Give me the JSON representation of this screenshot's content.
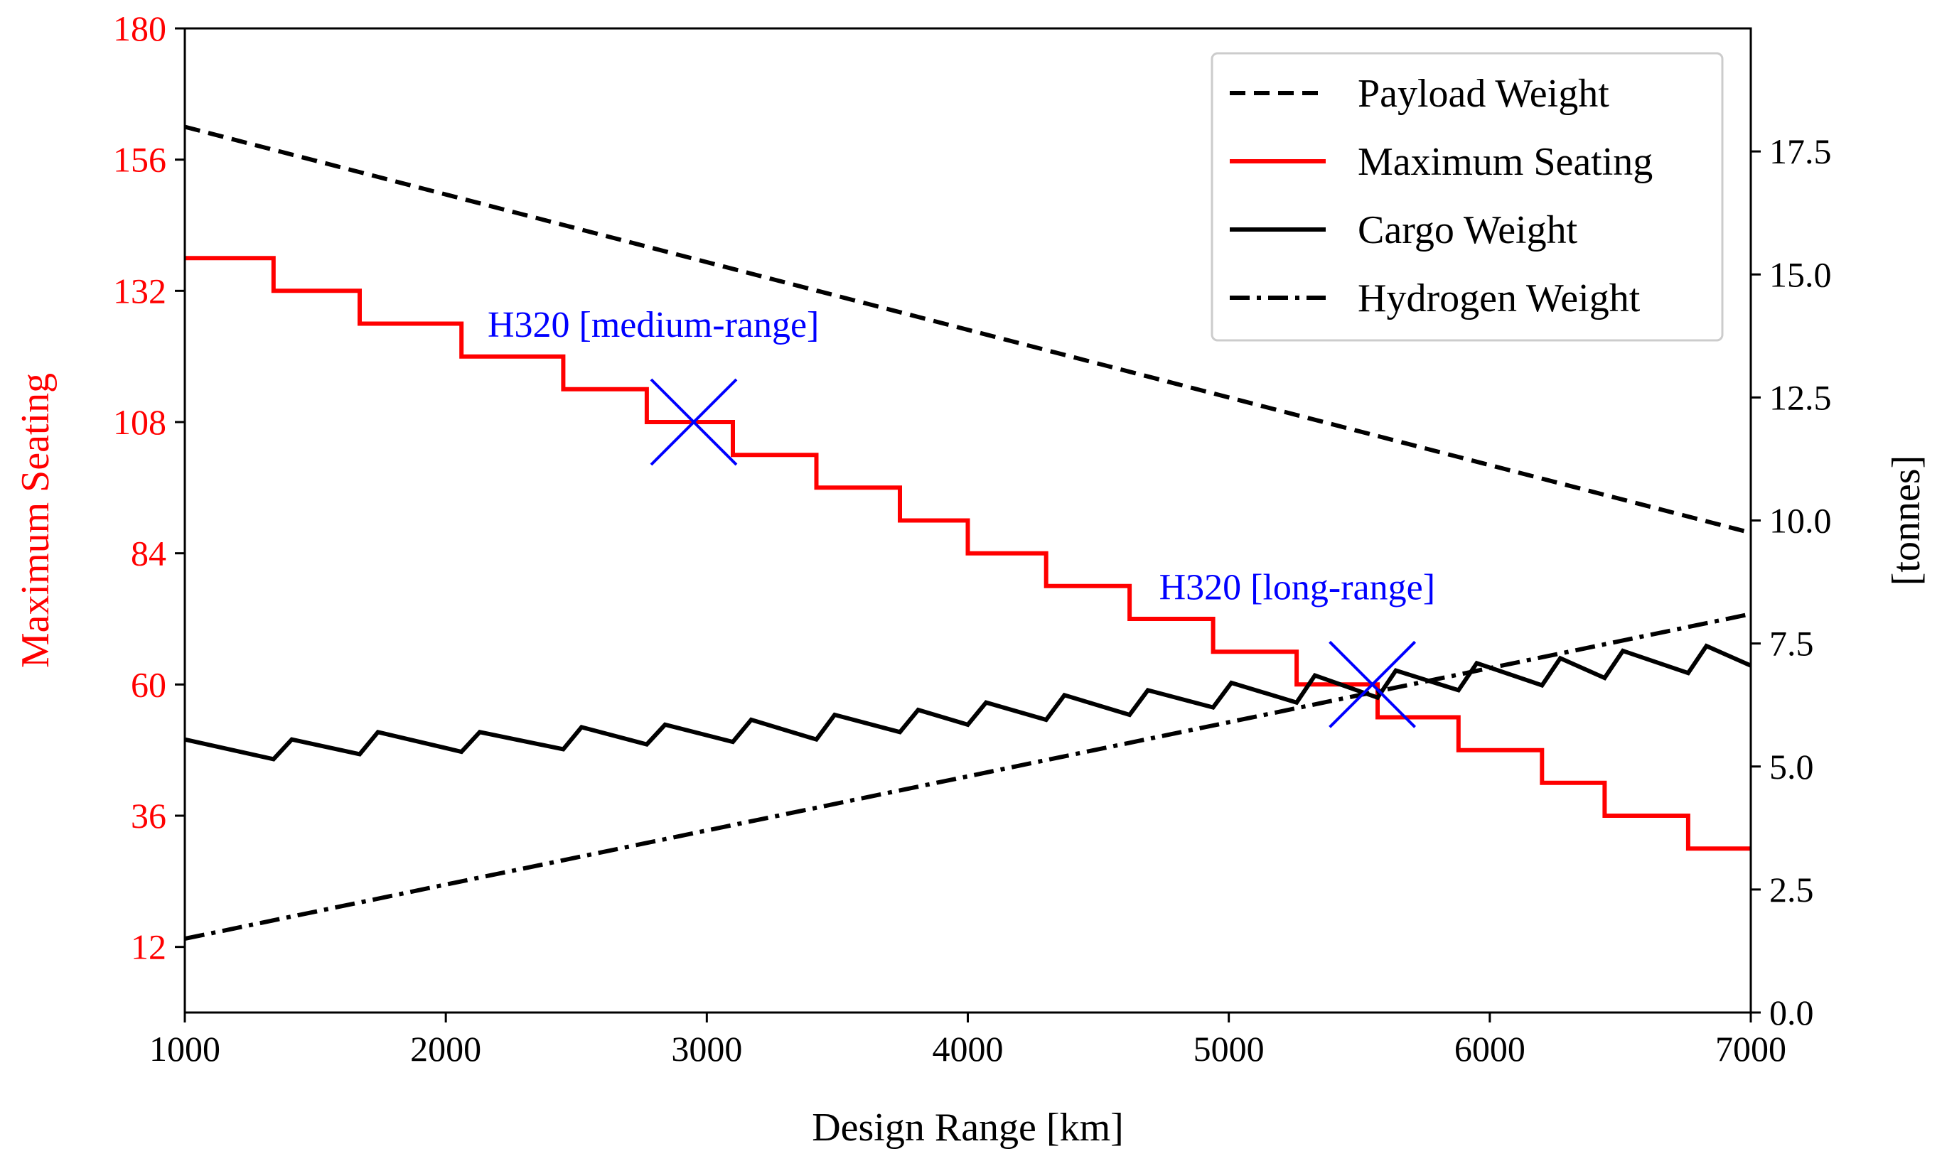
{
  "chart_data": {
    "type": "line",
    "x_axis": {
      "label": "Design Range [km]",
      "range": [
        1000,
        7000
      ],
      "ticks": [
        1000,
        2000,
        3000,
        4000,
        5000,
        6000,
        7000
      ]
    },
    "y_left": {
      "label": "Maximum Seating",
      "color": "#ff0000",
      "range": [
        0,
        180
      ],
      "ticks": [
        12,
        36,
        60,
        84,
        108,
        132,
        156,
        180
      ]
    },
    "y_right": {
      "label": "[tonnes]",
      "range": [
        0,
        20
      ],
      "ticks": [
        0.0,
        2.5,
        5.0,
        7.5,
        10.0,
        12.5,
        15.0,
        17.5
      ],
      "tick_labels": [
        "0.0",
        "2.5",
        "5.0",
        "7.5",
        "10.0",
        "12.5",
        "15.0",
        "17.5"
      ]
    },
    "legend_position": "top-right",
    "series": [
      {
        "name": "Payload Weight",
        "axis": "right",
        "color": "#000000",
        "style": "dashed",
        "x": [
          1000,
          7000
        ],
        "y": [
          18.0,
          9.75
        ]
      },
      {
        "name": "Maximum Seating",
        "axis": "left",
        "color": "#ff0000",
        "style": "step",
        "steps": [
          {
            "x0": 1000,
            "x1": 1340,
            "y": 138
          },
          {
            "x0": 1340,
            "x1": 1670,
            "y": 132
          },
          {
            "x0": 1670,
            "x1": 2060,
            "y": 126
          },
          {
            "x0": 2060,
            "x1": 2450,
            "y": 120
          },
          {
            "x0": 2450,
            "x1": 2770,
            "y": 114
          },
          {
            "x0": 2770,
            "x1": 3100,
            "y": 108
          },
          {
            "x0": 3100,
            "x1": 3420,
            "y": 102
          },
          {
            "x0": 3420,
            "x1": 3740,
            "y": 96
          },
          {
            "x0": 3740,
            "x1": 4000,
            "y": 90
          },
          {
            "x0": 4000,
            "x1": 4300,
            "y": 84
          },
          {
            "x0": 4300,
            "x1": 4620,
            "y": 78
          },
          {
            "x0": 4620,
            "x1": 4940,
            "y": 72
          },
          {
            "x0": 4940,
            "x1": 5260,
            "y": 66
          },
          {
            "x0": 5260,
            "x1": 5570,
            "y": 60
          },
          {
            "x0": 5570,
            "x1": 5880,
            "y": 54
          },
          {
            "x0": 5880,
            "x1": 6200,
            "y": 48
          },
          {
            "x0": 6200,
            "x1": 6440,
            "y": 42
          },
          {
            "x0": 6440,
            "x1": 6760,
            "y": 36
          },
          {
            "x0": 6760,
            "x1": 7000,
            "y": 30
          }
        ]
      },
      {
        "name": "Cargo Weight",
        "axis": "right",
        "color": "#000000",
        "style": "solid",
        "x": [
          1000,
          1340,
          1410,
          1670,
          1740,
          2060,
          2130,
          2450,
          2520,
          2770,
          2840,
          3100,
          3170,
          3420,
          3490,
          3740,
          3810,
          4000,
          4070,
          4300,
          4370,
          4620,
          4690,
          4940,
          5010,
          5260,
          5330,
          5570,
          5640,
          5880,
          5950,
          6200,
          6270,
          6440,
          6510,
          6760,
          6830,
          7000
        ],
        "y": [
          5.55,
          5.15,
          5.55,
          5.25,
          5.7,
          5.3,
          5.7,
          5.35,
          5.8,
          5.45,
          5.85,
          5.5,
          5.95,
          5.55,
          6.05,
          5.7,
          6.15,
          5.85,
          6.3,
          5.95,
          6.45,
          6.05,
          6.55,
          6.2,
          6.7,
          6.3,
          6.85,
          6.4,
          6.95,
          6.55,
          7.1,
          6.65,
          7.2,
          6.8,
          7.35,
          6.9,
          7.45,
          7.05
        ]
      },
      {
        "name": "Hydrogen Weight",
        "axis": "right",
        "color": "#000000",
        "style": "dashdot",
        "x": [
          1000,
          7000
        ],
        "y": [
          1.5,
          8.1
        ]
      }
    ],
    "annotations": [
      {
        "text": "H320 [medium-range]",
        "x": 2950,
        "y": 108,
        "axis": "left",
        "marker": "x",
        "color": "#0000ff"
      },
      {
        "text": "H320 [long-range]",
        "x": 5550,
        "y": 60,
        "axis": "left",
        "marker": "x",
        "color": "#0000ff"
      }
    ]
  }
}
